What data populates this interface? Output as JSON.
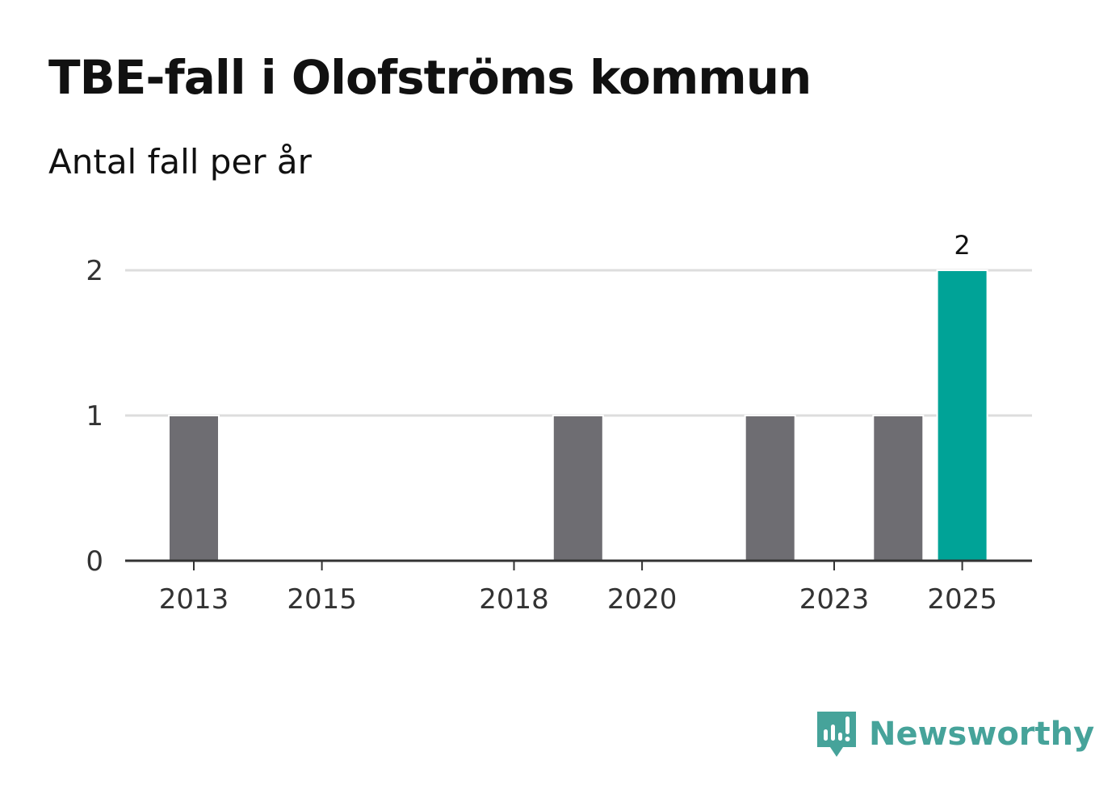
{
  "chart_data": {
    "type": "bar",
    "title": "TBE-fall i Olofströms kommun",
    "subtitle": "Antal fall per år",
    "categories": [
      2013,
      2014,
      2015,
      2016,
      2017,
      2018,
      2019,
      2020,
      2021,
      2022,
      2023,
      2024,
      2025
    ],
    "values": [
      1,
      0,
      0,
      0,
      0,
      0,
      1,
      0,
      0,
      1,
      0,
      1,
      2
    ],
    "x_tick_labels": [
      "2013",
      "2015",
      "2018",
      "2020",
      "2023",
      "2025"
    ],
    "y_ticks": [
      0,
      1,
      2
    ],
    "ylim": [
      0,
      2
    ],
    "highlight_category": 2025,
    "data_labels": [
      {
        "category": 2025,
        "text": "2"
      }
    ],
    "xlabel": "",
    "ylabel": "",
    "grid": true,
    "colors": {
      "bar": "#6e6d72",
      "highlight": "#00a397",
      "grid": "#dddddd",
      "axis": "#333333"
    }
  },
  "brand": {
    "icon": "newsworthy-logo-icon",
    "name": "Newsworthy",
    "color": "#46a39a"
  }
}
